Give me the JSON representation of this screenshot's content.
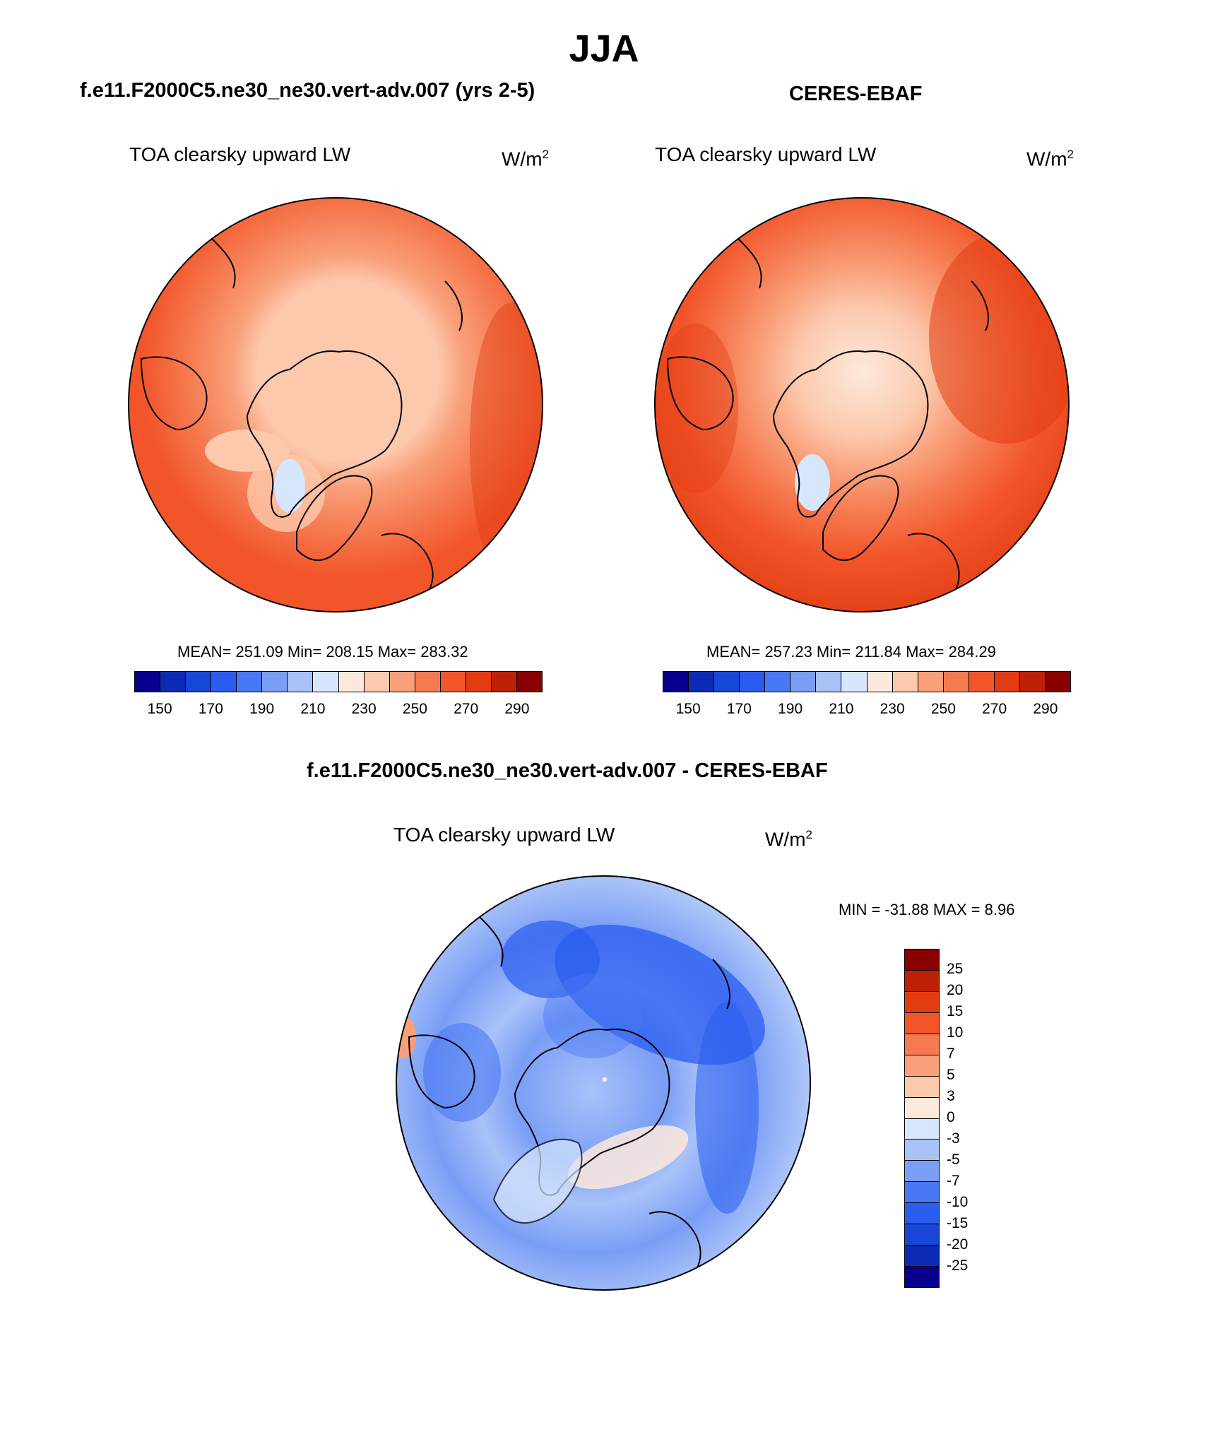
{
  "title": "JJA",
  "panels": [
    {
      "id": "model",
      "run_title": "f.e11.F2000C5.ne30_ne30.vert-adv.007 (yrs 2-5)",
      "variable": "TOA clearsky upward LW",
      "units_base": "W/m",
      "units_exp": "2",
      "stats": "MEAN= 251.09  Min= 208.15  Max= 283.32"
    },
    {
      "id": "obs",
      "run_title": "CERES-EBAF",
      "variable": "TOA clearsky upward LW",
      "units_base": "W/m",
      "units_exp": "2",
      "stats": "MEAN= 257.23  Min= 211.84  Max= 284.29"
    },
    {
      "id": "diff",
      "run_title": "f.e11.F2000C5.ne30_ne30.vert-adv.007 - CERES-EBAF",
      "variable": "TOA clearsky upward LW",
      "units_base": "W/m",
      "units_exp": "2",
      "stats": "MIN = -31.88 MAX =   8.96"
    }
  ],
  "colorbar_abs": {
    "colors": [
      "#08008c",
      "#0c2bb4",
      "#1846d8",
      "#2a5cf0",
      "#4a78f4",
      "#7a9ef6",
      "#a9c2f8",
      "#d6e6fc",
      "#fde9dc",
      "#fcc9ad",
      "#f9a07a",
      "#f67a50",
      "#f2552a",
      "#e23c12",
      "#bf2008",
      "#8a0000"
    ],
    "tick_labels": [
      "150",
      "170",
      "190",
      "210",
      "230",
      "250",
      "270",
      "290"
    ]
  },
  "colorbar_diff": {
    "colors": [
      "#8a0000",
      "#bf2008",
      "#e23c12",
      "#f2552a",
      "#f67a50",
      "#f9a07a",
      "#fcc9ad",
      "#fde9dc",
      "#d6e6fc",
      "#a9c2f8",
      "#7a9ef6",
      "#4a78f4",
      "#2a5cf0",
      "#1846d8",
      "#0c2bb4",
      "#08008c"
    ],
    "tick_labels": [
      "25",
      "20",
      "15",
      "10",
      "7",
      "5",
      "3",
      "0",
      "-3",
      "-5",
      "-7",
      "-10",
      "-15",
      "-20",
      "-25"
    ]
  }
}
